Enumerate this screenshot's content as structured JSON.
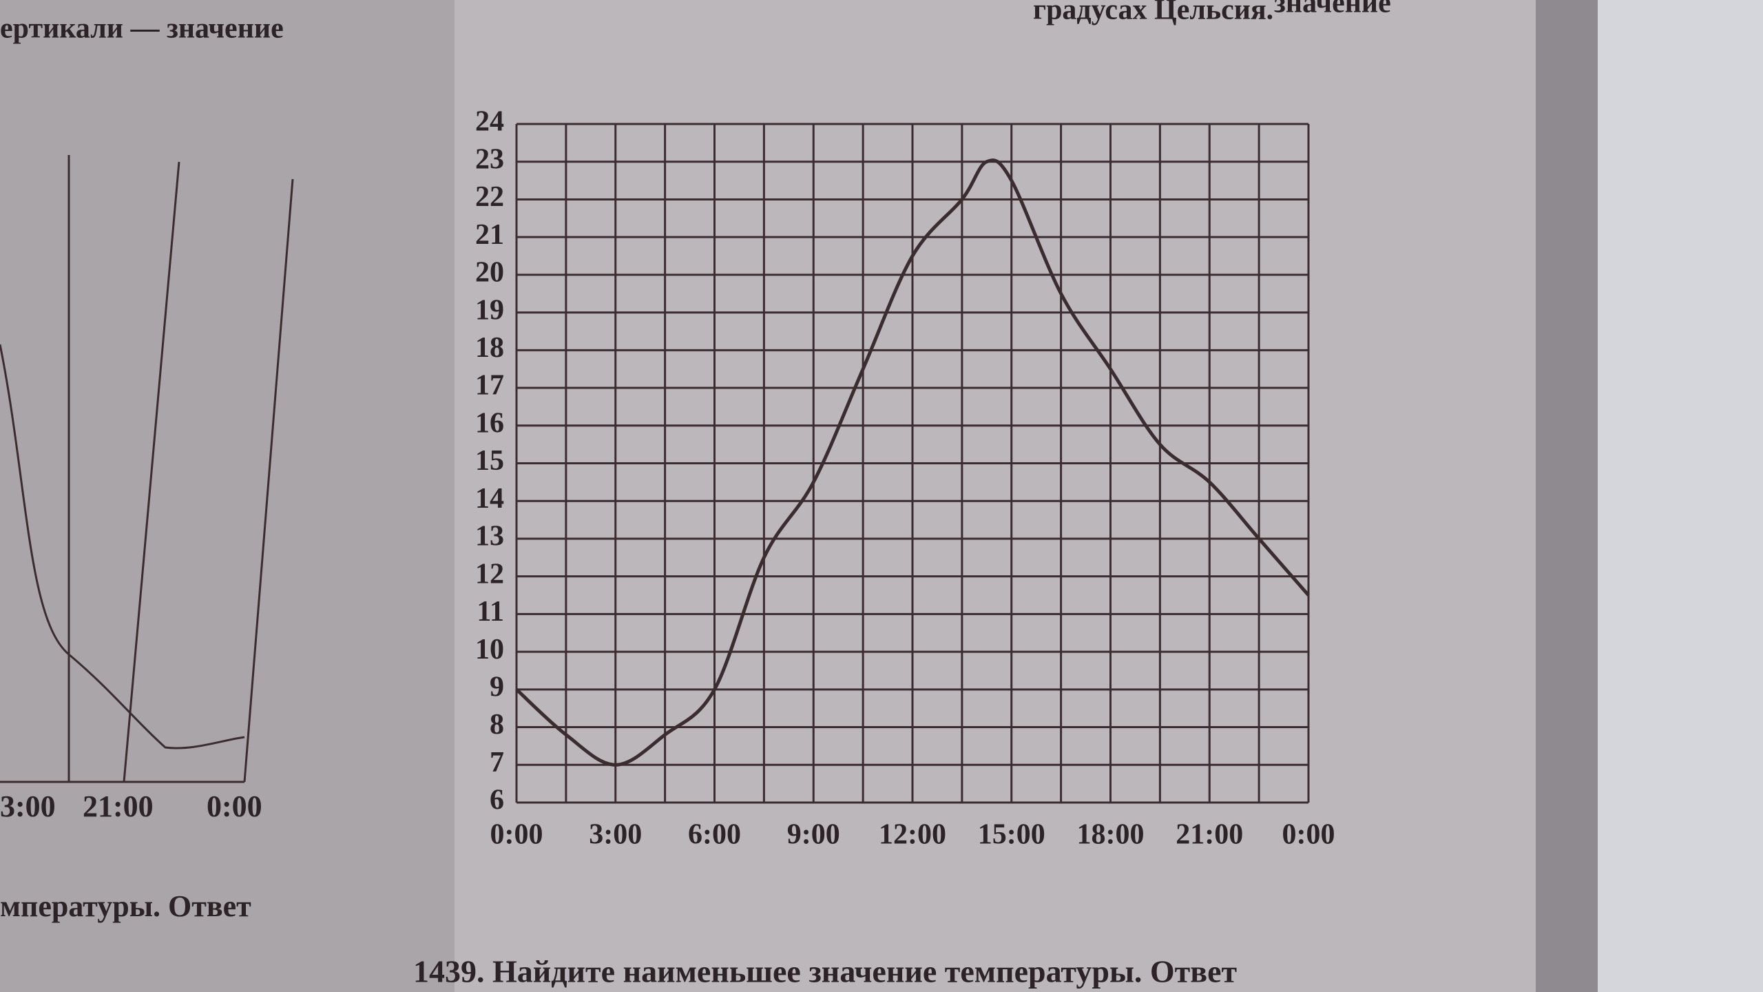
{
  "chart_data": {
    "type": "line",
    "x": [
      0,
      1.5,
      3,
      4.5,
      6,
      7.5,
      9,
      10.5,
      12,
      13.5,
      14.25,
      15,
      16.5,
      18,
      19.5,
      21,
      22.5,
      24
    ],
    "series": [
      {
        "color": "#3b2c30",
        "values": [
          9,
          7.8,
          7,
          7.8,
          9,
          12.5,
          14.5,
          17.5,
          20.5,
          22,
          23,
          22.5,
          19.5,
          17.5,
          15.5,
          14.5,
          13,
          11.5
        ]
      }
    ],
    "xlim": [
      0,
      24
    ],
    "xticks": [
      {
        "value": 0,
        "label": "0:00"
      },
      {
        "value": 3,
        "label": "3:00"
      },
      {
        "value": 6,
        "label": "6:00"
      },
      {
        "value": 9,
        "label": "9:00"
      },
      {
        "value": 12,
        "label": "12:00"
      },
      {
        "value": 15,
        "label": "15:00"
      },
      {
        "value": 18,
        "label": "18:00"
      },
      {
        "value": 21,
        "label": "21:00"
      },
      {
        "value": 24,
        "label": "0:00"
      }
    ],
    "xgrid": [
      0,
      1.5,
      3,
      4.5,
      6,
      7.5,
      9,
      10.5,
      12,
      13.5,
      15,
      16.5,
      18,
      19.5,
      21,
      22.5,
      24
    ],
    "ylim": [
      6,
      24
    ],
    "yticks": [
      6,
      7,
      8,
      9,
      10,
      11,
      12,
      13,
      14,
      15,
      16,
      17,
      18,
      19,
      20,
      21,
      22,
      23,
      24
    ],
    "grid": true,
    "annotations": [
      "1439. Найдите наименьшее значение температуры. Ответ",
      "мпературы.   Ответ",
      "ертикали — значение",
      "градусах Цельсия.",
      "значение",
      "3:00",
      "21:00",
      "0:00"
    ]
  }
}
